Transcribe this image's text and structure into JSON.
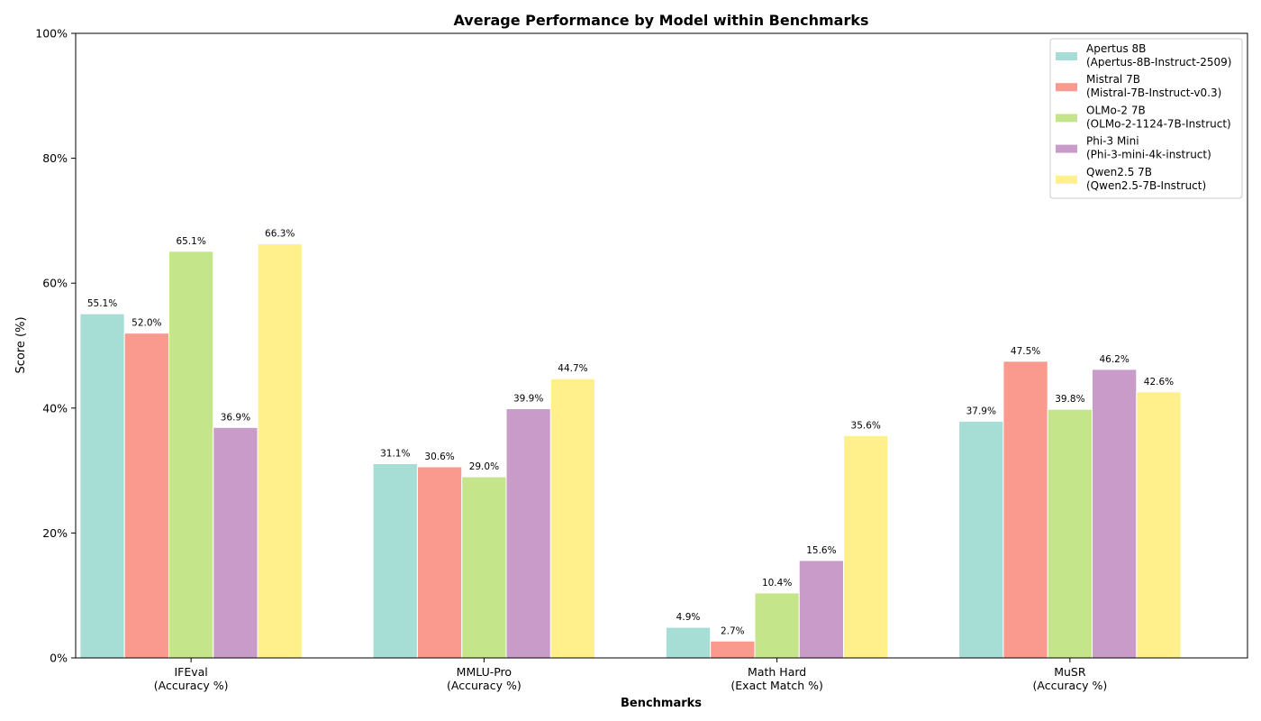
{
  "chart_data": {
    "type": "bar",
    "title": "Average Performance by Model within Benchmarks",
    "xlabel": "Benchmarks",
    "ylabel": "Score (%)",
    "ylim": [
      0,
      100
    ],
    "yticks": [
      "0%",
      "20%",
      "40%",
      "60%",
      "80%",
      "100%"
    ],
    "ytick_values": [
      0,
      20,
      40,
      60,
      80,
      100
    ],
    "grid": false,
    "legend_position": "top-right",
    "categories": [
      [
        "IFEval",
        "(Accuracy %)"
      ],
      [
        "MMLU-Pro",
        "(Accuracy %)"
      ],
      [
        "Math Hard",
        "(Exact Match %)"
      ],
      [
        "MuSR",
        "(Accuracy %)"
      ]
    ],
    "series": [
      {
        "name": [
          "Apertus 8B",
          "(Apertus-8B-Instruct-2509)"
        ],
        "color": "#a6ddd4",
        "values": [
          55.1,
          31.1,
          4.9,
          37.9
        ],
        "labels": [
          "55.1%",
          "31.1%",
          "4.9%",
          "37.9%"
        ]
      },
      {
        "name": [
          "Mistral 7B",
          "(Mistral-7B-Instruct-v0.3)"
        ],
        "color": "#fa9a8e",
        "values": [
          52.0,
          30.6,
          2.7,
          47.5
        ],
        "labels": [
          "52.0%",
          "30.6%",
          "2.7%",
          "47.5%"
        ]
      },
      {
        "name": [
          "OLMo-2 7B",
          "(OLMo-2-1124-7B-Instruct)"
        ],
        "color": "#c4e589",
        "values": [
          65.1,
          29.0,
          10.4,
          39.8
        ],
        "labels": [
          "65.1%",
          "29.0%",
          "10.4%",
          "39.8%"
        ]
      },
      {
        "name": [
          "Phi-3 Mini",
          "(Phi-3-mini-4k-instruct)"
        ],
        "color": "#c89bc9",
        "values": [
          36.9,
          39.9,
          15.6,
          46.2
        ],
        "labels": [
          "36.9%",
          "39.9%",
          "15.6%",
          "46.2%"
        ]
      },
      {
        "name": [
          "Qwen2.5 7B",
          "(Qwen2.5-7B-Instruct)"
        ],
        "color": "#fff08c",
        "values": [
          66.3,
          44.7,
          35.6,
          42.6
        ],
        "labels": [
          "66.3%",
          "44.7%",
          "35.6%",
          "42.6%"
        ]
      }
    ]
  }
}
